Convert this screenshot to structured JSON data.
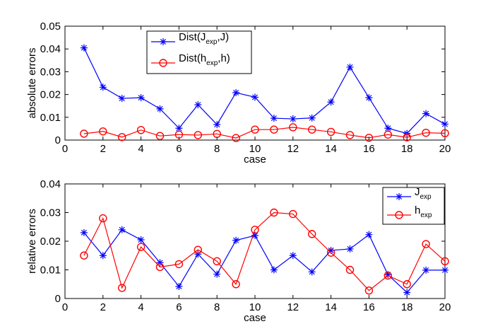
{
  "chart_data": [
    {
      "type": "line",
      "xlabel": "case",
      "ylabel": "absolute errors",
      "xlim": [
        0,
        20
      ],
      "ylim": [
        0,
        0.05
      ],
      "xticks": [
        0,
        2,
        4,
        6,
        8,
        10,
        12,
        14,
        16,
        18,
        20
      ],
      "yticks": [
        0,
        0.01,
        0.02,
        0.03,
        0.04,
        0.05
      ],
      "ytick_labels": [
        "0",
        "0.01",
        "0.02",
        "0.03",
        "0.04",
        "0.05"
      ],
      "x": [
        1,
        2,
        3,
        4,
        5,
        6,
        7,
        8,
        9,
        10,
        11,
        12,
        13,
        14,
        15,
        16,
        17,
        18,
        19,
        20
      ],
      "legend_position": "top-left-center",
      "series": [
        {
          "name": "Dist(J_exp,J)",
          "legend": {
            "pre": "Dist(J",
            "sub": "exp",
            "post": ",J)"
          },
          "color": "#0000ff",
          "marker": "asterisk",
          "values": [
            0.0405,
            0.0232,
            0.0183,
            0.0186,
            0.0137,
            0.0052,
            0.0155,
            0.0068,
            0.0208,
            0.0188,
            0.0096,
            0.0093,
            0.0097,
            0.0167,
            0.032,
            0.0186,
            0.0052,
            0.0029,
            0.0116,
            0.007
          ]
        },
        {
          "name": "Dist(h_exp,h)",
          "legend": {
            "pre": "Dist(h",
            "sub": "exp",
            "post": ",h)"
          },
          "color": "#ff0000",
          "marker": "circle",
          "values": [
            0.0028,
            0.0038,
            0.0013,
            0.0044,
            0.0018,
            0.0024,
            0.0022,
            0.0027,
            0.0009,
            0.0046,
            0.0046,
            0.0056,
            0.0046,
            0.0036,
            0.0022,
            0.001,
            0.0024,
            0.0012,
            0.0032,
            0.003
          ]
        }
      ]
    },
    {
      "type": "line",
      "xlabel": "case",
      "ylabel": "relative errors",
      "xlim": [
        0,
        20
      ],
      "ylim": [
        0,
        0.04
      ],
      "xticks": [
        0,
        2,
        4,
        6,
        8,
        10,
        12,
        14,
        16,
        18,
        20
      ],
      "yticks": [
        0,
        0.01,
        0.02,
        0.03,
        0.04
      ],
      "ytick_labels": [
        "0",
        "0.01",
        "0.02",
        "0.03",
        "0.04"
      ],
      "x": [
        1,
        2,
        3,
        4,
        5,
        6,
        7,
        8,
        9,
        10,
        11,
        12,
        13,
        14,
        15,
        16,
        17,
        18,
        19,
        20
      ],
      "legend_position": "top-right",
      "series": [
        {
          "name": "J_exp",
          "legend": {
            "pre": "J",
            "sub": "exp",
            "post": ""
          },
          "color": "#0000ff",
          "marker": "asterisk",
          "values": [
            0.023,
            0.015,
            0.024,
            0.0205,
            0.0125,
            0.0042,
            0.0155,
            0.0085,
            0.0203,
            0.022,
            0.01,
            0.015,
            0.0093,
            0.0168,
            0.0173,
            0.0223,
            0.0083,
            0.0021,
            0.0099,
            0.0099
          ]
        },
        {
          "name": "h_exp",
          "legend": {
            "pre": "h",
            "sub": "exp",
            "post": ""
          },
          "color": "#ff0000",
          "marker": "circle",
          "values": [
            0.015,
            0.028,
            0.0037,
            0.018,
            0.011,
            0.012,
            0.017,
            0.013,
            0.005,
            0.024,
            0.03,
            0.0295,
            0.0225,
            0.016,
            0.01,
            0.0028,
            0.008,
            0.005,
            0.019,
            0.013
          ]
        }
      ]
    }
  ]
}
